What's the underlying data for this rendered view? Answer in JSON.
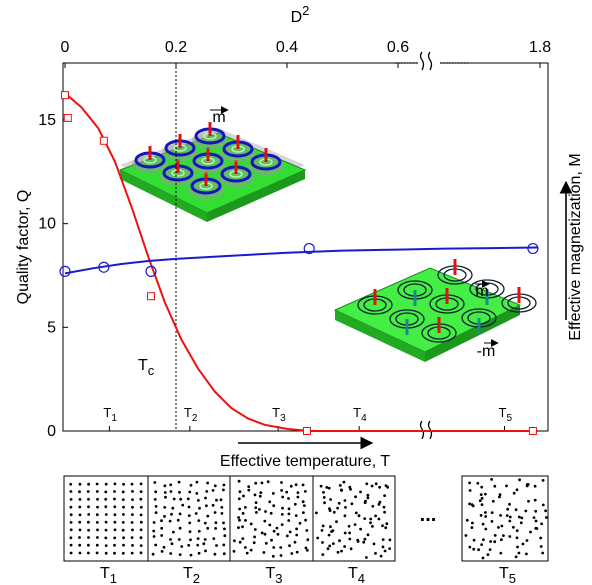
{
  "chart_data": {
    "type": "scatter",
    "x_label": "D",
    "x_label_superscript": "2",
    "y_label": "Quality factor, Q",
    "y2_label": "Effective magnetization, M",
    "bottom_label": "Effective temperature, T",
    "xlim": [
      0,
      1.8
    ],
    "xticks": [
      0,
      0.2,
      0.4,
      0.6,
      1.8
    ],
    "ylim": [
      0,
      17.75
    ],
    "yticks": [
      0,
      5,
      10,
      15
    ],
    "series": [
      {
        "marker": "line",
        "color": "#ee1111",
        "x": [
          0,
          0.03,
          0.06,
          0.09,
          0.12,
          0.15,
          0.18,
          0.21,
          0.24,
          0.27,
          0.3,
          0.33,
          0.36,
          0.4,
          0.44,
          0.6,
          1.0,
          1.4,
          1.78
        ],
        "values": [
          16.3,
          15.6,
          14.6,
          13.0,
          10.8,
          8.4,
          6.2,
          4.4,
          3.0,
          1.9,
          1.1,
          0.6,
          0.3,
          0.1,
          0,
          0,
          0,
          0,
          0
        ]
      },
      {
        "marker": "line",
        "color": "#1a1ad0",
        "x": [
          0,
          0.05,
          0.1,
          0.15,
          0.2,
          0.3,
          0.4,
          0.5,
          0.6,
          1.0,
          1.4,
          1.78
        ],
        "values": [
          7.6,
          7.85,
          8.05,
          8.2,
          8.3,
          8.45,
          8.6,
          8.7,
          8.75,
          8.8,
          8.82,
          8.85
        ]
      },
      {
        "marker": "square",
        "color": "#ee1111",
        "x": [
          0,
          0.005,
          0.07,
          0.155,
          0.436,
          1.74
        ],
        "values": [
          16.2,
          15.1,
          14.0,
          6.5,
          0,
          0
        ]
      },
      {
        "marker": "circle",
        "color": "#1a1ad0",
        "x": [
          0,
          0.07,
          0.155,
          0.44,
          1.74
        ],
        "values": [
          7.7,
          7.9,
          7.7,
          8.8,
          8.8
        ]
      }
    ],
    "tc": {
      "x": 0.2,
      "base": "T",
      "sub": "c"
    },
    "temperature_ticks": [
      {
        "value": 0.08,
        "base": "T",
        "sub": "1"
      },
      {
        "value": 0.225,
        "base": "T",
        "sub": "2"
      },
      {
        "value": 0.384,
        "base": "T",
        "sub": "3"
      },
      {
        "value": 0.53,
        "base": "T",
        "sub": "4"
      },
      {
        "value": 1.5,
        "base": "T",
        "sub": "5"
      }
    ],
    "inset_labels": {
      "m_top": "m",
      "m_right": "m",
      "minus_m": "-m"
    },
    "snapshots": [
      {
        "base": "T",
        "sub": "1"
      },
      {
        "base": "T",
        "sub": "2"
      },
      {
        "base": "T",
        "sub": "3"
      },
      {
        "base": "T",
        "sub": "4"
      },
      {
        "base": "T",
        "sub": "5"
      }
    ],
    "ellipsis": "..."
  }
}
